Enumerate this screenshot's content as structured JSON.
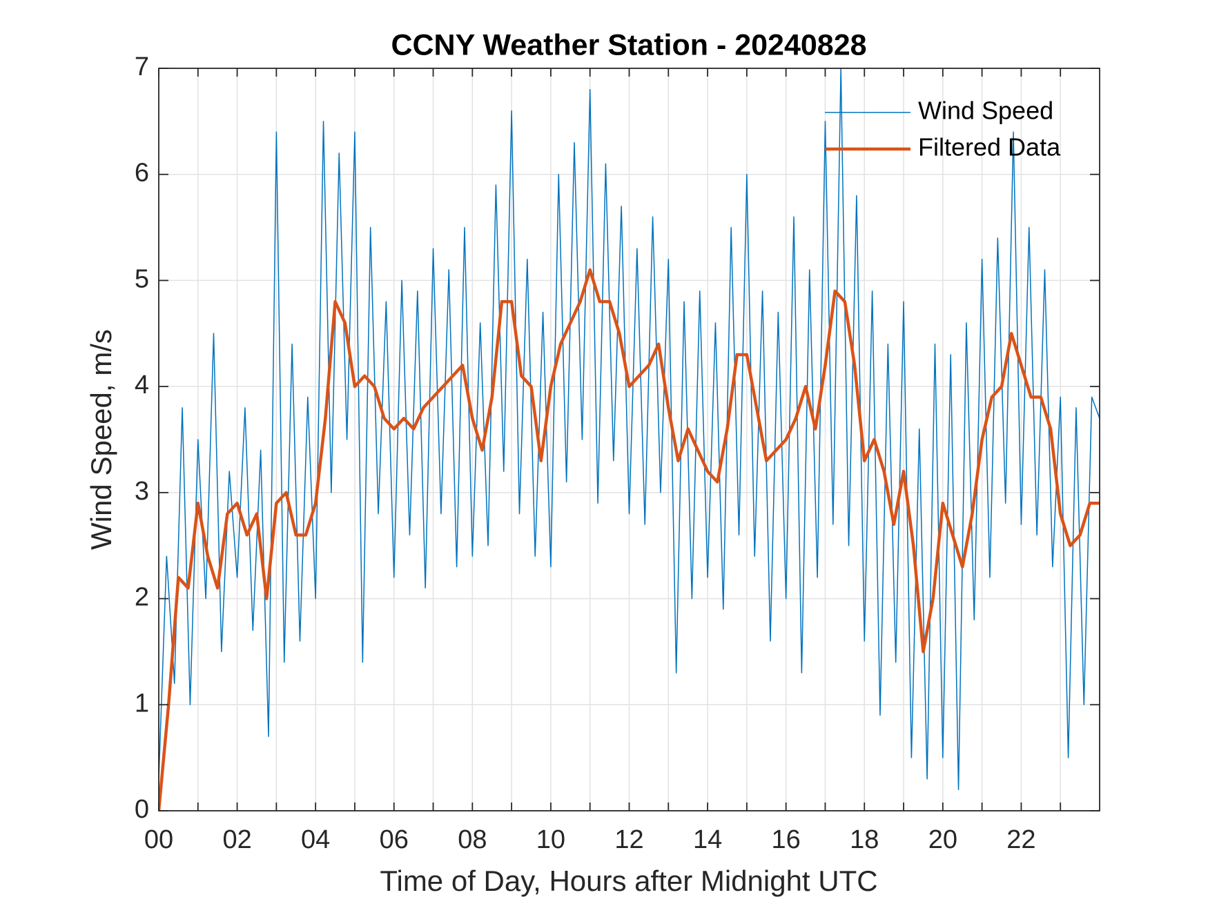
{
  "chart_data": {
    "type": "line",
    "title": "CCNY Weather Station - 20240828",
    "xlabel": "Time of Day, Hours after Midnight UTC",
    "ylabel": "Wind Speed, m/s",
    "xlim": [
      0,
      24
    ],
    "ylim": [
      0,
      7
    ],
    "xticks": [
      {
        "value": 0,
        "label": "00"
      },
      {
        "value": 2,
        "label": "02"
      },
      {
        "value": 4,
        "label": "04"
      },
      {
        "value": 6,
        "label": "06"
      },
      {
        "value": 8,
        "label": "08"
      },
      {
        "value": 10,
        "label": "10"
      },
      {
        "value": 12,
        "label": "12"
      },
      {
        "value": 14,
        "label": "14"
      },
      {
        "value": 16,
        "label": "16"
      },
      {
        "value": 18,
        "label": "18"
      },
      {
        "value": 20,
        "label": "20"
      },
      {
        "value": 22,
        "label": "22"
      }
    ],
    "xminorticks": [
      1,
      3,
      5,
      7,
      9,
      11,
      13,
      15,
      17,
      19,
      21,
      23
    ],
    "yticks": [
      0,
      1,
      2,
      3,
      4,
      5,
      6,
      7
    ],
    "grid": true,
    "legend": "upper right",
    "series": [
      {
        "name": "Wind Speed",
        "color": "#0072BD",
        "width": 1.5,
        "x": [
          0,
          0.2,
          0.4,
          0.6,
          0.8,
          1,
          1.2,
          1.4,
          1.6,
          1.8,
          2,
          2.2,
          2.4,
          2.6,
          2.8,
          3,
          3.2,
          3.4,
          3.6,
          3.8,
          4,
          4.2,
          4.4,
          4.6,
          4.8,
          5,
          5.2,
          5.4,
          5.6,
          5.8,
          6,
          6.2,
          6.4,
          6.6,
          6.8,
          7,
          7.2,
          7.4,
          7.6,
          7.8,
          8,
          8.2,
          8.4,
          8.6,
          8.8,
          9,
          9.2,
          9.4,
          9.6,
          9.8,
          10,
          10.2,
          10.4,
          10.6,
          10.8,
          11,
          11.2,
          11.4,
          11.6,
          11.8,
          12,
          12.2,
          12.4,
          12.6,
          12.8,
          13,
          13.2,
          13.4,
          13.6,
          13.8,
          14,
          14.2,
          14.4,
          14.6,
          14.8,
          15,
          15.2,
          15.4,
          15.6,
          15.8,
          16,
          16.2,
          16.4,
          16.6,
          16.8,
          17,
          17.2,
          17.4,
          17.6,
          17.8,
          18,
          18.2,
          18.4,
          18.6,
          18.8,
          19,
          19.2,
          19.4,
          19.6,
          19.8,
          20,
          20.2,
          20.4,
          20.6,
          20.8,
          21,
          21.2,
          21.4,
          21.6,
          21.8,
          22,
          22.2,
          22.4,
          22.6,
          22.8,
          23,
          23.2,
          23.4,
          23.6,
          23.8,
          24
        ],
        "values": [
          0.3,
          2.4,
          1.2,
          3.8,
          1.0,
          3.5,
          2.0,
          4.5,
          1.5,
          3.2,
          2.2,
          3.8,
          1.7,
          3.4,
          0.7,
          6.4,
          1.4,
          4.4,
          1.6,
          3.9,
          2.0,
          6.5,
          3.0,
          6.2,
          3.5,
          6.4,
          1.4,
          5.5,
          2.8,
          4.8,
          2.2,
          5.0,
          2.6,
          4.9,
          2.1,
          5.3,
          2.8,
          5.1,
          2.3,
          5.5,
          2.4,
          4.6,
          2.5,
          5.9,
          3.2,
          6.6,
          2.8,
          5.2,
          2.4,
          4.7,
          2.3,
          6.0,
          3.1,
          6.3,
          3.5,
          6.8,
          2.9,
          6.1,
          3.3,
          5.7,
          2.8,
          5.3,
          2.7,
          5.6,
          3.0,
          5.2,
          1.3,
          4.8,
          2.0,
          4.9,
          2.2,
          4.6,
          1.9,
          5.5,
          2.6,
          6.0,
          2.4,
          4.9,
          1.6,
          4.7,
          2.0,
          5.6,
          1.3,
          5.1,
          2.2,
          6.5,
          2.7,
          7.0,
          2.5,
          5.8,
          1.6,
          4.9,
          0.9,
          4.4,
          1.4,
          4.8,
          0.5,
          3.6,
          0.3,
          4.4,
          0.5,
          4.3,
          0.2,
          4.6,
          1.8,
          5.2,
          2.2,
          5.4,
          2.9,
          6.4,
          2.7,
          5.5,
          2.6,
          5.1,
          2.3,
          3.9,
          0.5,
          3.8,
          1.0,
          3.9,
          3.7
        ]
      },
      {
        "name": "Filtered Data",
        "color": "#D95319",
        "width": 4.5,
        "x": [
          0,
          0.25,
          0.5,
          0.75,
          1,
          1.25,
          1.5,
          1.75,
          2,
          2.25,
          2.5,
          2.75,
          3,
          3.25,
          3.5,
          3.75,
          4,
          4.25,
          4.5,
          4.75,
          5,
          5.25,
          5.5,
          5.75,
          6,
          6.25,
          6.5,
          6.75,
          7,
          7.25,
          7.5,
          7.75,
          8,
          8.25,
          8.5,
          8.75,
          9,
          9.25,
          9.5,
          9.75,
          10,
          10.25,
          10.5,
          10.75,
          11,
          11.25,
          11.5,
          11.75,
          12,
          12.25,
          12.5,
          12.75,
          13,
          13.25,
          13.5,
          13.75,
          14,
          14.25,
          14.5,
          14.75,
          15,
          15.25,
          15.5,
          15.75,
          16,
          16.25,
          16.5,
          16.75,
          17,
          17.25,
          17.5,
          17.75,
          18,
          18.25,
          18.5,
          18.75,
          19,
          19.25,
          19.5,
          19.75,
          20,
          20.25,
          20.5,
          20.75,
          21,
          21.25,
          21.5,
          21.75,
          22,
          22.25,
          22.5,
          22.75,
          23,
          23.25,
          23.5,
          23.75,
          24
        ],
        "values": [
          0.0,
          1.0,
          2.2,
          2.1,
          2.9,
          2.4,
          2.1,
          2.8,
          2.9,
          2.6,
          2.8,
          2.0,
          2.9,
          3.0,
          2.6,
          2.6,
          2.9,
          3.7,
          4.8,
          4.6,
          4.0,
          4.1,
          4.0,
          3.7,
          3.6,
          3.7,
          3.6,
          3.8,
          3.9,
          4.0,
          4.1,
          4.2,
          3.7,
          3.4,
          3.9,
          4.8,
          4.8,
          4.1,
          4.0,
          3.3,
          4.0,
          4.4,
          4.6,
          4.8,
          5.1,
          4.8,
          4.8,
          4.5,
          4.0,
          4.1,
          4.2,
          4.4,
          3.8,
          3.3,
          3.6,
          3.4,
          3.2,
          3.1,
          3.6,
          4.3,
          4.3,
          3.8,
          3.3,
          3.4,
          3.5,
          3.7,
          4.0,
          3.6,
          4.2,
          4.9,
          4.8,
          4.2,
          3.3,
          3.5,
          3.2,
          2.7,
          3.2,
          2.5,
          1.5,
          2.0,
          2.9,
          2.6,
          2.3,
          2.8,
          3.5,
          3.9,
          4.0,
          4.5,
          4.2,
          3.9,
          3.9,
          3.6,
          2.8,
          2.5,
          2.6,
          2.9,
          2.9
        ]
      }
    ]
  }
}
